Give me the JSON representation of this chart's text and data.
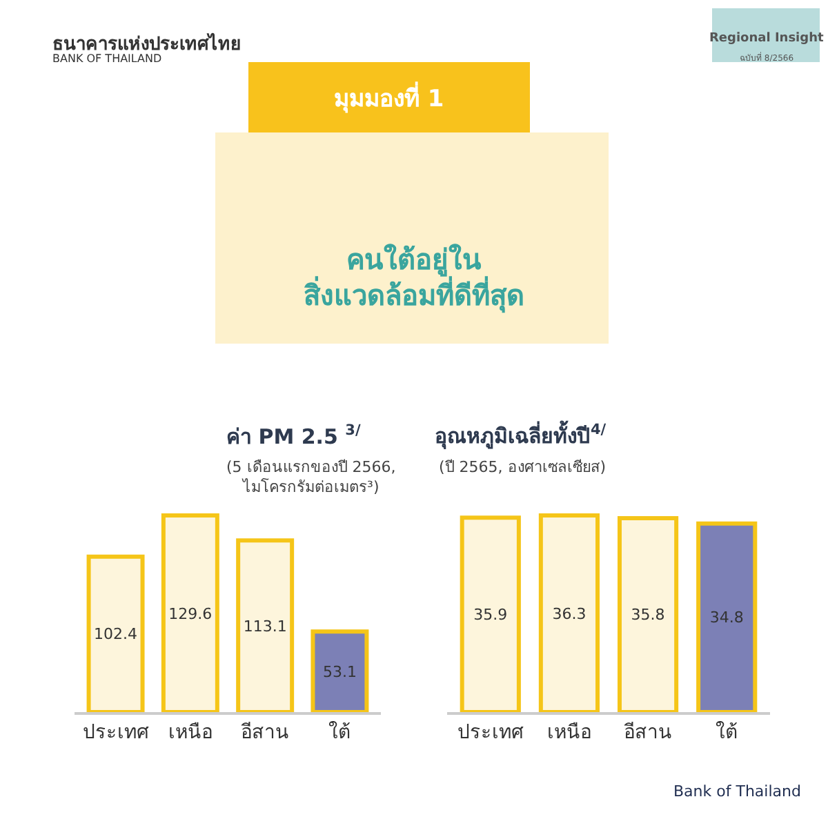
{
  "chart_data": [
    {
      "type": "other",
      "title": "มุมมองที่ 1",
      "subtitle": "คนใต้อยู่ใน\nสิ่งแวดล้อมที่ดีที่สุด",
      "annotations": [
        "ธนาคารแห่งประเทศไทย",
        "BANK OF THAILAND",
        "Regional Insight",
        "ฉบับที่ 8/2566",
        "Bank of Thailand"
      ]
    },
    {
      "type": "bar",
      "title": "ค่า PM 2.5 $^{3/}$",
      "subtitle": "(5 เดือนแรกของปี 2566,\nไมโครกรัมต่อเมตร³)",
      "categories": [
        "ประเทศ",
        "เหนือ",
        "อีสาน",
        "ใต้"
      ],
      "values": [
        102.4,
        129.6,
        113.1,
        53.1
      ],
      "colors": [
        "#fdf5dc",
        "#fdf5dc",
        "#fdf5dc",
        "#7c80b6"
      ],
      "data_labels": true
    },
    {
      "type": "bar",
      "title": "อุณหภูมิเฉลี่ยทั้งปี$^{4/}$",
      "subtitle": "(ปี 2565, องศาเซลเซียส)",
      "categories": [
        "ประเทศ",
        "เหนือ",
        "อีสาน",
        "ใต้"
      ],
      "values": [
        35.9,
        36.3,
        35.8,
        34.8
      ],
      "colors": [
        "#fdf5dc",
        "#fdf5dc",
        "#fdf5dc",
        "#7c80b6"
      ],
      "data_labels": true
    }
  ]
}
